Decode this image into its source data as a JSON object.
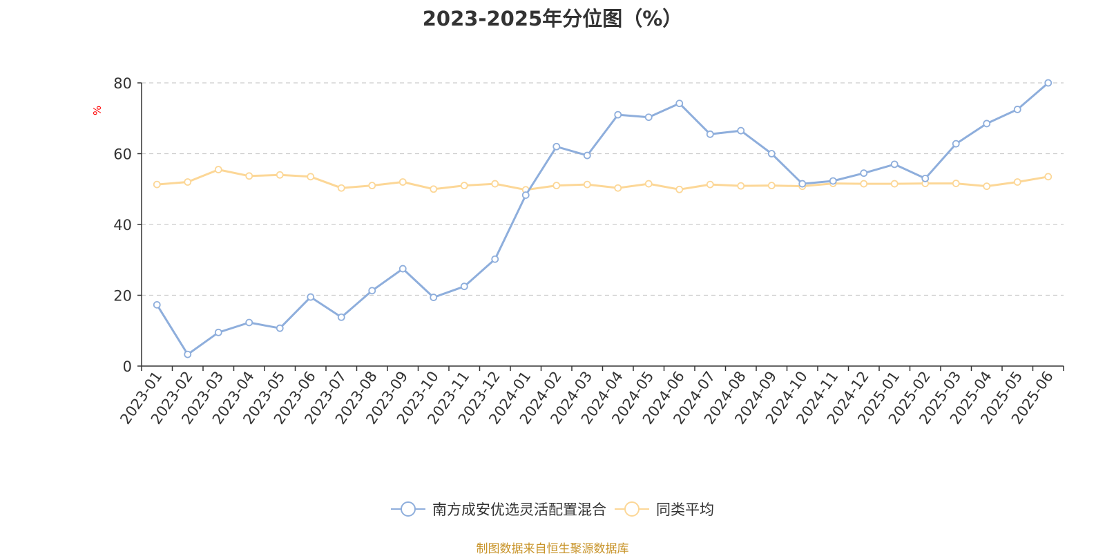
{
  "chart_data": {
    "type": "line",
    "title": "2023-2025年分位图（%）",
    "ylabel": "%",
    "xlabel": "",
    "ylim": [
      0,
      80
    ],
    "yticks": [
      0,
      20,
      40,
      60,
      80
    ],
    "grid": true,
    "legend_position": "bottom",
    "categories": [
      "2023-01",
      "2023-02",
      "2023-03",
      "2023-04",
      "2023-05",
      "2023-06",
      "2023-07",
      "2023-08",
      "2023-09",
      "2023-10",
      "2023-11",
      "2023-12",
      "2024-01",
      "2024-02",
      "2024-03",
      "2024-04",
      "2024-05",
      "2024-06",
      "2024-07",
      "2024-08",
      "2024-09",
      "2024-10",
      "2024-11",
      "2024-12",
      "2025-01",
      "2025-02",
      "2025-03",
      "2025-04",
      "2025-05",
      "2025-06"
    ],
    "series": [
      {
        "name": "南方成安优选灵活配置混合",
        "color": "#8eaedc",
        "values": [
          17.3,
          3.3,
          9.5,
          12.3,
          10.7,
          19.5,
          13.8,
          21.3,
          27.5,
          19.4,
          22.5,
          30.2,
          48.3,
          62.0,
          59.5,
          71.0,
          70.3,
          74.2,
          65.5,
          66.5,
          60.0,
          51.5,
          52.3,
          54.5,
          57.0,
          53.0,
          62.8,
          68.5,
          72.5,
          80.0
        ]
      },
      {
        "name": "同类平均",
        "color": "#fcd797",
        "values": [
          51.3,
          52.0,
          55.5,
          53.7,
          54.0,
          53.5,
          50.3,
          51.0,
          52.0,
          50.0,
          51.0,
          51.5,
          49.8,
          51.0,
          51.3,
          50.3,
          51.5,
          49.9,
          51.3,
          50.9,
          51.0,
          50.8,
          51.6,
          51.5,
          51.5,
          51.6,
          51.6,
          50.8,
          52.0,
          53.5
        ]
      }
    ]
  },
  "footer": {
    "source_text": "制图数据来自恒生聚源数据库",
    "source_color": "#c8942a"
  }
}
